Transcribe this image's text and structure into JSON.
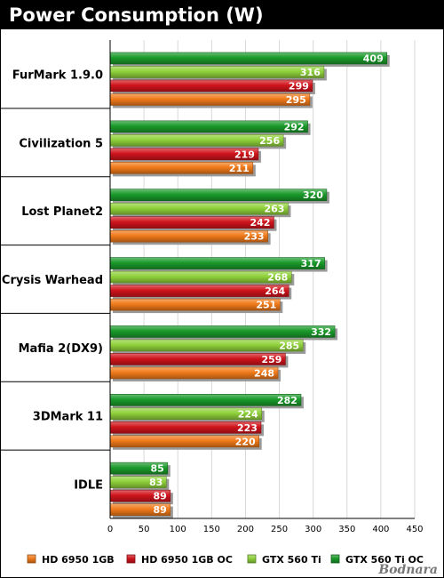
{
  "chart_data": {
    "type": "bar",
    "orientation": "horizontal",
    "title": "Power Consumption (W)",
    "categories": [
      "FurMark 1.9.0",
      "Civilization 5",
      "Lost Planet2",
      "Crysis Warhead",
      "Mafia 2(DX9)",
      "3DMark 11",
      "IDLE"
    ],
    "series": [
      {
        "name": "GTX 560 Ti OC",
        "color": "#1a9a2a",
        "values": [
          409,
          292,
          320,
          317,
          332,
          282,
          85
        ]
      },
      {
        "name": "GTX 560 Ti",
        "color": "#8fd13a",
        "values": [
          316,
          256,
          263,
          268,
          285,
          224,
          83
        ]
      },
      {
        "name": "HD 6950 1GB OC",
        "color": "#d0141c",
        "values": [
          299,
          219,
          242,
          264,
          259,
          223,
          89
        ]
      },
      {
        "name": "HD 6950 1GB",
        "color": "#f07a1a",
        "values": [
          295,
          211,
          233,
          251,
          248,
          220,
          89
        ]
      }
    ],
    "legend_order": [
      "HD 6950 1GB",
      "HD 6950 1GB OC",
      "GTX 560 Ti",
      "GTX 560 Ti OC"
    ],
    "xlim": [
      0,
      450
    ],
    "xticks": [
      0,
      50,
      100,
      150,
      200,
      250,
      300,
      350,
      400,
      450
    ],
    "grid": true,
    "legend_position": "bottom"
  },
  "watermark": "Bodnara"
}
